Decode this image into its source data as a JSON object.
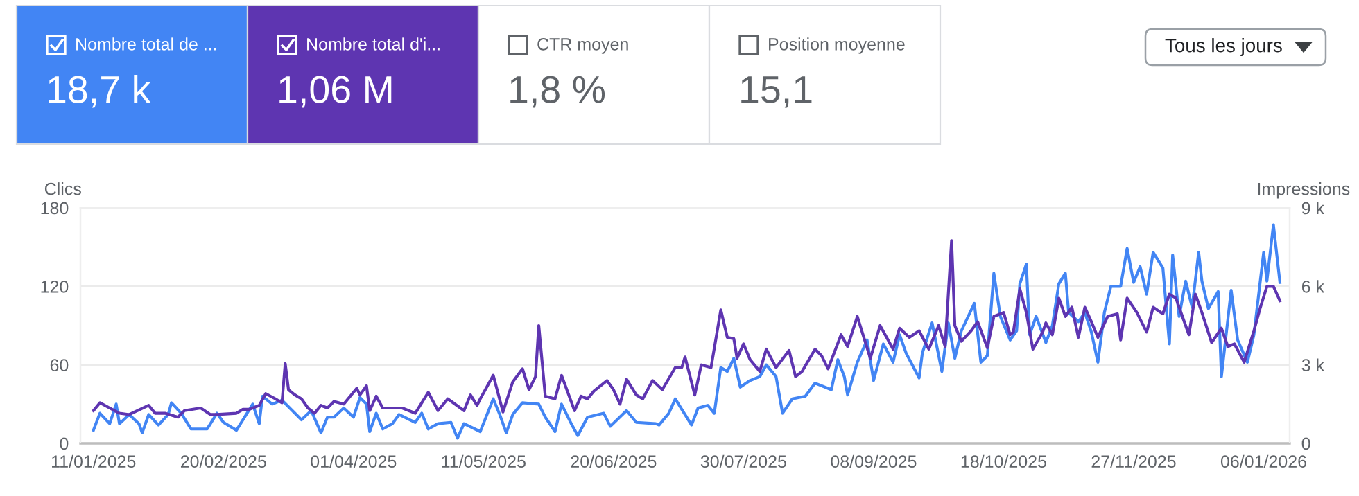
{
  "chart_data": [
    {
      "type": "other",
      "annotations": [
        "Nombre total de ...",
        "18,7 k",
        "Nombre total d'i...",
        "1,06 M",
        "CTR moyen",
        "1,8 %",
        "Position moyenne",
        "15,1",
        "Tous les jours"
      ]
    },
    {
      "type": "line",
      "ylabel": "Clics",
      "y2label": "Impressions",
      "xlim": [
        "2025-01-07",
        "2026-01-14"
      ],
      "xticks": [
        {
          "value": "2025-01-11",
          "label": "11/01/2025"
        },
        {
          "value": "2025-02-20",
          "label": "20/02/2025"
        },
        {
          "value": "2025-04-01",
          "label": "01/04/2025"
        },
        {
          "value": "2025-05-11",
          "label": "11/05/2025"
        },
        {
          "value": "2025-06-20",
          "label": "20/06/2025"
        },
        {
          "value": "2025-07-30",
          "label": "30/07/2025"
        },
        {
          "value": "2025-09-08",
          "label": "08/09/2025"
        },
        {
          "value": "2025-10-18",
          "label": "18/10/2025"
        },
        {
          "value": "2025-11-27",
          "label": "27/11/2025"
        },
        {
          "value": "2026-01-06",
          "label": "06/01/2026"
        }
      ],
      "ylim": [
        0,
        180
      ],
      "yticks": [
        0,
        60,
        120,
        180
      ],
      "y2lim": [
        0,
        9000
      ],
      "y2ticks": [
        {
          "value": 0,
          "label": "0"
        },
        {
          "value": 3000,
          "label": "3 k"
        },
        {
          "value": 6000,
          "label": "6 k"
        },
        {
          "value": 9000,
          "label": "9 k"
        }
      ],
      "grid": "y",
      "series": [
        {
          "color": "#4285f4",
          "x": [
            "2025-01-11",
            "2025-01-13",
            "2025-01-16",
            "2025-01-18",
            "2025-01-19",
            "2025-01-22",
            "2025-01-25",
            "2025-01-26",
            "2025-01-28",
            "2025-01-31",
            "2025-02-03",
            "2025-02-04",
            "2025-02-07",
            "2025-02-10",
            "2025-02-15",
            "2025-02-18",
            "2025-02-20",
            "2025-02-24",
            "2025-03-01",
            "2025-03-03",
            "2025-03-04",
            "2025-03-07",
            "2025-03-10",
            "2025-03-16",
            "2025-03-19",
            "2025-03-22",
            "2025-03-24",
            "2025-03-26",
            "2025-03-29",
            "2025-04-01",
            "2025-04-03",
            "2025-04-05",
            "2025-04-06",
            "2025-04-08",
            "2025-04-10",
            "2025-04-13",
            "2025-04-15",
            "2025-04-20",
            "2025-04-22",
            "2025-04-24",
            "2025-04-27",
            "2025-05-01",
            "2025-05-03",
            "2025-05-05",
            "2025-05-10",
            "2025-05-14",
            "2025-05-16",
            "2025-05-18",
            "2025-05-20",
            "2025-05-23",
            "2025-05-28",
            "2025-05-30",
            "2025-06-02",
            "2025-06-04",
            "2025-06-07",
            "2025-06-09",
            "2025-06-12",
            "2025-06-17",
            "2025-06-19",
            "2025-06-24",
            "2025-06-27",
            "2025-07-03",
            "2025-07-04",
            "2025-07-07",
            "2025-07-09",
            "2025-07-14",
            "2025-07-16",
            "2025-07-19",
            "2025-07-21",
            "2025-07-23",
            "2025-07-25",
            "2025-07-27",
            "2025-07-29",
            "2025-08-01",
            "2025-08-04",
            "2025-08-06",
            "2025-08-09",
            "2025-08-11",
            "2025-08-14",
            "2025-08-18",
            "2025-08-21",
            "2025-08-26",
            "2025-08-28",
            "2025-08-30",
            "2025-08-31",
            "2025-09-03",
            "2025-09-06",
            "2025-09-08",
            "2025-09-11",
            "2025-09-14",
            "2025-09-16",
            "2025-09-18",
            "2025-09-22",
            "2025-09-23",
            "2025-09-26",
            "2025-09-29",
            "2025-10-01",
            "2025-10-03",
            "2025-10-05",
            "2025-10-09",
            "2025-10-11",
            "2025-10-13",
            "2025-10-15",
            "2025-10-17",
            "2025-10-20",
            "2025-10-22",
            "2025-10-23",
            "2025-10-25",
            "2025-10-26",
            "2025-10-28",
            "2025-10-31",
            "2025-11-02",
            "2025-11-04",
            "2025-11-06",
            "2025-11-07",
            "2025-11-10",
            "2025-11-12",
            "2025-11-14",
            "2025-11-16",
            "2025-11-18",
            "2025-11-20",
            "2025-11-23",
            "2025-11-25",
            "2025-11-27",
            "2025-11-29",
            "2025-12-01",
            "2025-12-03",
            "2025-12-06",
            "2025-12-08",
            "2025-12-09",
            "2025-12-11",
            "2025-12-13",
            "2025-12-15",
            "2025-12-17",
            "2025-12-18",
            "2025-12-20",
            "2025-12-23",
            "2025-12-24",
            "2025-12-27",
            "2025-12-29",
            "2026-01-01",
            "2026-01-03",
            "2026-01-06",
            "2026-01-07",
            "2026-01-09",
            "2026-01-11"
          ],
          "values": [
            10,
            23,
            15,
            30,
            15,
            22,
            15,
            8,
            22,
            14,
            22,
            31,
            23,
            11,
            11,
            23,
            16,
            10,
            30,
            15,
            36,
            30,
            33,
            18,
            25,
            8,
            20,
            20,
            27,
            20,
            35,
            30,
            9,
            23,
            11,
            15,
            22,
            16,
            23,
            11,
            15,
            16,
            4,
            15,
            9,
            34,
            22,
            8,
            22,
            31,
            30,
            20,
            9,
            30,
            15,
            6,
            20,
            23,
            13,
            25,
            16,
            15,
            14,
            23,
            34,
            14,
            27,
            29,
            23,
            58,
            55,
            65,
            43,
            48,
            51,
            60,
            51,
            23,
            34,
            36,
            46,
            41,
            64,
            51,
            37,
            62,
            79,
            48,
            76,
            62,
            83,
            69,
            50,
            69,
            92,
            55,
            92,
            65,
            86,
            107,
            62,
            67,
            130,
            97,
            79,
            86,
            122,
            137,
            83,
            97,
            77,
            90,
            122,
            130,
            100,
            93,
            100,
            85,
            62,
            100,
            120,
            120,
            149,
            123,
            135,
            114,
            146,
            134,
            76,
            144,
            97,
            124,
            104,
            146,
            124,
            103,
            116,
            51,
            117,
            79,
            62,
            83,
            146,
            124,
            167,
            123
          ]
        },
        {
          "color": "#5e35b1",
          "axis": "y2",
          "x": [
            "2025-01-11",
            "2025-01-13",
            "2025-01-16",
            "2025-01-19",
            "2025-01-22",
            "2025-01-28",
            "2025-01-30",
            "2025-02-02",
            "2025-02-06",
            "2025-02-08",
            "2025-02-13",
            "2025-02-16",
            "2025-02-18",
            "2025-02-24",
            "2025-02-26",
            "2025-02-28",
            "2025-03-03",
            "2025-03-05",
            "2025-03-08",
            "2025-03-10",
            "2025-03-11",
            "2025-03-12",
            "2025-03-14",
            "2025-03-16",
            "2025-03-18",
            "2025-03-20",
            "2025-03-22",
            "2025-03-24",
            "2025-03-26",
            "2025-03-29",
            "2025-04-02",
            "2025-04-03",
            "2025-04-05",
            "2025-04-06",
            "2025-04-08",
            "2025-04-10",
            "2025-04-16",
            "2025-04-20",
            "2025-04-24",
            "2025-04-27",
            "2025-04-30",
            "2025-05-05",
            "2025-05-07",
            "2025-05-09",
            "2025-05-10",
            "2025-05-14",
            "2025-05-17",
            "2025-05-20",
            "2025-05-23",
            "2025-05-25",
            "2025-05-27",
            "2025-05-28",
            "2025-05-30",
            "2025-06-02",
            "2025-06-04",
            "2025-06-08",
            "2025-06-10",
            "2025-06-12",
            "2025-06-14",
            "2025-06-18",
            "2025-06-20",
            "2025-06-22",
            "2025-06-24",
            "2025-06-27",
            "2025-06-29",
            "2025-07-02",
            "2025-07-05",
            "2025-07-09",
            "2025-07-11",
            "2025-07-12",
            "2025-07-15",
            "2025-07-17",
            "2025-07-20",
            "2025-07-23",
            "2025-07-25",
            "2025-07-27",
            "2025-07-28",
            "2025-07-30",
            "2025-08-01",
            "2025-08-04",
            "2025-08-06",
            "2025-08-09",
            "2025-08-13",
            "2025-08-15",
            "2025-08-17",
            "2025-08-21",
            "2025-08-23",
            "2025-08-25",
            "2025-08-29",
            "2025-08-31",
            "2025-09-03",
            "2025-09-07",
            "2025-09-10",
            "2025-09-14",
            "2025-09-16",
            "2025-09-19",
            "2025-09-22",
            "2025-09-25",
            "2025-09-28",
            "2025-09-30",
            "2025-10-02",
            "2025-10-03",
            "2025-10-05",
            "2025-10-08",
            "2025-10-10",
            "2025-10-13",
            "2025-10-15",
            "2025-10-18",
            "2025-10-20",
            "2025-10-21",
            "2025-10-23",
            "2025-10-25",
            "2025-10-27",
            "2025-10-30",
            "2025-10-31",
            "2025-11-02",
            "2025-11-04",
            "2025-11-06",
            "2025-11-08",
            "2025-11-10",
            "2025-11-12",
            "2025-11-14",
            "2025-11-16",
            "2025-11-19",
            "2025-11-22",
            "2025-11-23",
            "2025-11-25",
            "2025-11-28",
            "2025-12-01",
            "2025-12-03",
            "2025-12-06",
            "2025-12-08",
            "2025-12-10",
            "2025-12-12",
            "2025-12-14",
            "2025-12-16",
            "2025-12-18",
            "2025-12-21",
            "2025-12-24",
            "2025-12-26",
            "2025-12-28",
            "2025-12-31",
            "2026-01-03",
            "2026-01-05",
            "2026-01-07",
            "2026-01-09",
            "2026-01-11"
          ],
          "values": [
            1250,
            1550,
            1350,
            1150,
            1100,
            1450,
            1150,
            1150,
            1000,
            1250,
            1350,
            1100,
            1100,
            1150,
            1300,
            1300,
            1450,
            1900,
            1700,
            1550,
            3050,
            2050,
            1850,
            1700,
            1350,
            1150,
            1450,
            1350,
            1600,
            1500,
            2100,
            1850,
            2200,
            1250,
            1800,
            1350,
            1350,
            1150,
            1950,
            1250,
            1700,
            1250,
            1850,
            1450,
            1700,
            2600,
            1200,
            2350,
            2850,
            2050,
            2550,
            4500,
            1800,
            1700,
            2600,
            1250,
            1800,
            1700,
            2000,
            2400,
            2050,
            1500,
            2450,
            1850,
            1700,
            2400,
            2050,
            2900,
            2900,
            3300,
            1850,
            3000,
            2900,
            5100,
            4050,
            4000,
            3250,
            3800,
            3200,
            2750,
            3600,
            2900,
            3550,
            2550,
            2750,
            3600,
            3350,
            2850,
            4150,
            3700,
            4850,
            3250,
            4500,
            3600,
            4400,
            4050,
            4300,
            3600,
            4500,
            3700,
            7750,
            4500,
            3900,
            4300,
            4650,
            3650,
            4850,
            5000,
            4150,
            4250,
            5900,
            5000,
            3600,
            4250,
            4600,
            4150,
            5550,
            4850,
            5200,
            4050,
            5200,
            4650,
            4050,
            4850,
            4950,
            3950,
            5550,
            5000,
            4250,
            5200,
            4950,
            5700,
            5550,
            4850,
            4150,
            5700,
            5000,
            3850,
            4400,
            3700,
            3800,
            3100,
            4300,
            5200,
            6000,
            6000,
            5450
          ]
        }
      ]
    }
  ]
}
